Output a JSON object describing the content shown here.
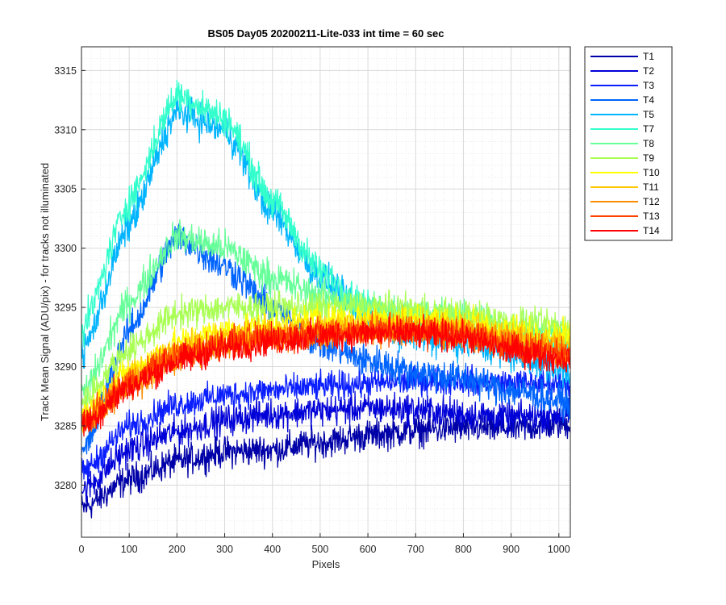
{
  "chart_data": {
    "type": "line",
    "title": "BS05 Day05 20200211-Lite-033 int time = 60 sec",
    "xlabel": "Pixels",
    "ylabel": "Track Mean Signal (ADU/pix) - for tracks not illuminated",
    "xlim": [
      0,
      1024
    ],
    "ylim": [
      3275.6,
      3317.0
    ],
    "xticks": [
      0,
      100,
      200,
      300,
      400,
      500,
      600,
      700,
      800,
      900,
      1000
    ],
    "yticks": [
      3280,
      3285,
      3290,
      3295,
      3300,
      3305,
      3310,
      3315
    ],
    "grid": true,
    "minor_grid": true,
    "legend_position": "outside-top-right",
    "series": [
      {
        "name": "T1",
        "color": "#0000a8",
        "noise": 1.1,
        "points": [
          [
            0,
            3278
          ],
          [
            100,
            3280.5
          ],
          [
            200,
            3282
          ],
          [
            300,
            3282.8
          ],
          [
            400,
            3283
          ],
          [
            500,
            3283.6
          ],
          [
            600,
            3284.2
          ],
          [
            700,
            3284.6
          ],
          [
            800,
            3284.8
          ],
          [
            900,
            3284.8
          ],
          [
            1024,
            3285.2
          ]
        ]
      },
      {
        "name": "T2",
        "color": "#0000d8",
        "noise": 1.1,
        "points": [
          [
            0,
            3279.5
          ],
          [
            100,
            3283
          ],
          [
            200,
            3284.5
          ],
          [
            300,
            3285.5
          ],
          [
            400,
            3286
          ],
          [
            500,
            3286.3
          ],
          [
            600,
            3286.5
          ],
          [
            700,
            3286.4
          ],
          [
            800,
            3286
          ],
          [
            900,
            3285.7
          ],
          [
            1024,
            3286
          ]
        ]
      },
      {
        "name": "T3",
        "color": "#0a1eff",
        "noise": 1.0,
        "points": [
          [
            0,
            3281
          ],
          [
            100,
            3285
          ],
          [
            200,
            3286.8
          ],
          [
            300,
            3287.6
          ],
          [
            400,
            3288
          ],
          [
            500,
            3288.3
          ],
          [
            600,
            3288.6
          ],
          [
            700,
            3288.8
          ],
          [
            800,
            3288.8
          ],
          [
            900,
            3288.6
          ],
          [
            1024,
            3288.6
          ]
        ]
      },
      {
        "name": "T4",
        "color": "#0064ff",
        "noise": 1.2,
        "points": [
          [
            0,
            3282.5
          ],
          [
            100,
            3293
          ],
          [
            200,
            3301
          ],
          [
            300,
            3298.5
          ],
          [
            400,
            3295
          ],
          [
            500,
            3292
          ],
          [
            600,
            3290.5
          ],
          [
            700,
            3289.5
          ],
          [
            800,
            3289
          ],
          [
            900,
            3288
          ],
          [
            1024,
            3287
          ]
        ]
      },
      {
        "name": "T5",
        "color": "#00b4ff",
        "noise": 1.2,
        "points": [
          [
            0,
            3291
          ],
          [
            100,
            3302
          ],
          [
            200,
            3311.5
          ],
          [
            300,
            3310
          ],
          [
            400,
            3303
          ],
          [
            500,
            3297.5
          ],
          [
            600,
            3294
          ],
          [
            700,
            3292.5
          ],
          [
            800,
            3292
          ],
          [
            900,
            3291
          ],
          [
            1024,
            3289.5
          ]
        ]
      },
      {
        "name": "T7",
        "color": "#33ffcc",
        "noise": 1.2,
        "points": [
          [
            0,
            3293
          ],
          [
            100,
            3304
          ],
          [
            200,
            3313
          ],
          [
            300,
            3311
          ],
          [
            400,
            3304
          ],
          [
            500,
            3298
          ],
          [
            600,
            3295
          ],
          [
            700,
            3294
          ],
          [
            800,
            3293.5
          ],
          [
            900,
            3292.5
          ],
          [
            1024,
            3292
          ]
        ]
      },
      {
        "name": "T8",
        "color": "#66ff99",
        "noise": 1.2,
        "points": [
          [
            0,
            3287.5
          ],
          [
            100,
            3295.5
          ],
          [
            200,
            3301
          ],
          [
            300,
            3300
          ],
          [
            400,
            3297.5
          ],
          [
            500,
            3296
          ],
          [
            600,
            3295
          ],
          [
            700,
            3294.5
          ],
          [
            800,
            3294
          ],
          [
            900,
            3293.2
          ],
          [
            1024,
            3292.5
          ]
        ]
      },
      {
        "name": "T9",
        "color": "#aaff55",
        "noise": 1.1,
        "points": [
          [
            0,
            3287
          ],
          [
            100,
            3291.5
          ],
          [
            200,
            3294.5
          ],
          [
            300,
            3295
          ],
          [
            400,
            3295
          ],
          [
            500,
            3295
          ],
          [
            600,
            3295
          ],
          [
            700,
            3294.8
          ],
          [
            800,
            3294.4
          ],
          [
            900,
            3293.8
          ],
          [
            1024,
            3293.3
          ]
        ]
      },
      {
        "name": "T10",
        "color": "#ffff00",
        "noise": 1.1,
        "points": [
          [
            0,
            3286
          ],
          [
            100,
            3289.5
          ],
          [
            200,
            3292
          ],
          [
            300,
            3293
          ],
          [
            400,
            3293.5
          ],
          [
            500,
            3294
          ],
          [
            600,
            3294
          ],
          [
            700,
            3294
          ],
          [
            800,
            3293.8
          ],
          [
            900,
            3293
          ],
          [
            1024,
            3292.5
          ]
        ]
      },
      {
        "name": "T11",
        "color": "#ffc800",
        "noise": 1.1,
        "points": [
          [
            0,
            3285.5
          ],
          [
            100,
            3289
          ],
          [
            200,
            3291.2
          ],
          [
            300,
            3292.2
          ],
          [
            400,
            3292.8
          ],
          [
            500,
            3293.2
          ],
          [
            600,
            3293.5
          ],
          [
            700,
            3293.5
          ],
          [
            800,
            3293.3
          ],
          [
            900,
            3292.5
          ],
          [
            1024,
            3291.8
          ]
        ]
      },
      {
        "name": "T12",
        "color": "#ff8c00",
        "noise": 1.1,
        "points": [
          [
            0,
            3285
          ],
          [
            100,
            3288.5
          ],
          [
            200,
            3290.8
          ],
          [
            300,
            3291.8
          ],
          [
            400,
            3292.4
          ],
          [
            500,
            3292.8
          ],
          [
            600,
            3293
          ],
          [
            700,
            3293
          ],
          [
            800,
            3292.8
          ],
          [
            900,
            3292
          ],
          [
            1024,
            3291.2
          ]
        ]
      },
      {
        "name": "T13",
        "color": "#ff4100",
        "noise": 1.1,
        "points": [
          [
            0,
            3285.2
          ],
          [
            100,
            3288.7
          ],
          [
            200,
            3291
          ],
          [
            300,
            3292
          ],
          [
            400,
            3292.5
          ],
          [
            500,
            3292.8
          ],
          [
            600,
            3293
          ],
          [
            700,
            3293
          ],
          [
            800,
            3292.8
          ],
          [
            900,
            3291.7
          ],
          [
            1024,
            3291
          ]
        ]
      },
      {
        "name": "T14",
        "color": "#ff0000",
        "noise": 1.1,
        "points": [
          [
            0,
            3285
          ],
          [
            100,
            3288.3
          ],
          [
            200,
            3290.5
          ],
          [
            300,
            3291.6
          ],
          [
            400,
            3292.2
          ],
          [
            500,
            3292.6
          ],
          [
            600,
            3292.8
          ],
          [
            700,
            3292.8
          ],
          [
            800,
            3292.5
          ],
          [
            900,
            3291.4
          ],
          [
            1024,
            3290.6
          ]
        ]
      }
    ]
  }
}
